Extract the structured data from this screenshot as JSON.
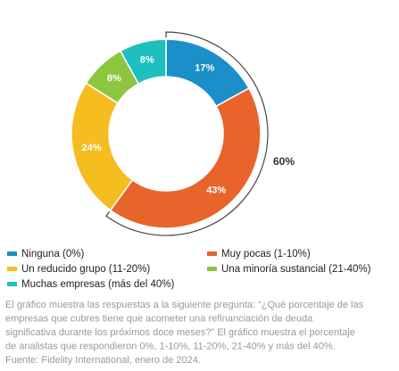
{
  "chart_data": {
    "type": "pie",
    "categories": [
      "Ninguna (0%)",
      "Muy pocas (1-10%)",
      "Un reducido grupo (11-20%)",
      "Una minoría sustancial (21-40%)",
      "Muchas empresas (más del 40%)"
    ],
    "values": [
      17,
      43,
      24,
      8,
      8
    ],
    "value_labels": [
      "17%",
      "43%",
      "24%",
      "8%",
      "8%"
    ],
    "colors": [
      "#1a8fc9",
      "#e8642a",
      "#f5bd1f",
      "#8cc63f",
      "#1fbfbf"
    ],
    "annotation": "60%",
    "caption": [
      "El gráfico muestra las respuestas a la siguiente pregunta: “¿Qué porcentaje de las",
      "empresas que cubres tiene que acometer una refinanciación de deuda",
      "significativa durante los próximos doce meses?” El gráfico muestra el porcentaje",
      "de analistas que respondieron 0%, 1-10%, 11-20%, 21-40% y más del 40%.",
      "Fuente: Fidelity International, enero de 2024."
    ]
  }
}
